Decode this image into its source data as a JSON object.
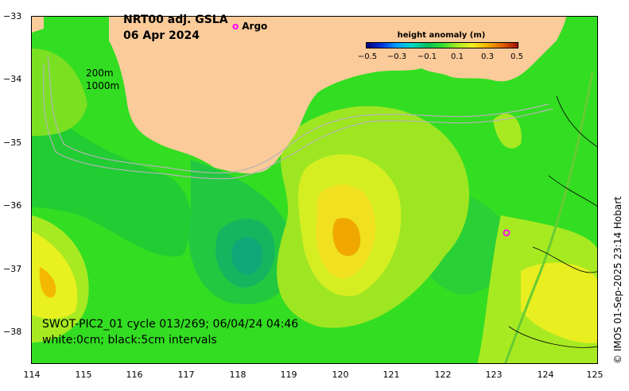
{
  "title_line1": "NRT00 adj. GSLA",
  "title_line2": "06 Apr 2024",
  "argo_legend": "Argo",
  "colorbar": {
    "title": "height anomaly (m)",
    "ticks": [
      "−0.5",
      "−0.3",
      "−0.1",
      "0.1",
      "0.3",
      "0.5"
    ],
    "range": [
      -0.5,
      0.5
    ]
  },
  "isobath_labels": [
    "200m",
    "1000m"
  ],
  "swot_caption_line1": "SWOT-PIC2_01 cycle 013/269; 06/04/24 04:46",
  "swot_caption_line2": "white:0cm; black:5cm intervals",
  "copyright": "© IMOS 01-Sep-2025 23:14 Hobart",
  "axes": {
    "x_ticks": [
      "114",
      "115",
      "116",
      "117",
      "118",
      "119",
      "120",
      "121",
      "122",
      "123",
      "124",
      "125"
    ],
    "y_ticks": [
      "−33",
      "−34",
      "−35",
      "−36",
      "−37",
      "−38"
    ],
    "xlim": [
      114,
      125
    ],
    "ylim": [
      -38.5,
      -33
    ]
  },
  "colors": {
    "land": "#fccb9a",
    "argo_marker": "#ff00ff",
    "isobath": "#b4b4b4"
  }
}
